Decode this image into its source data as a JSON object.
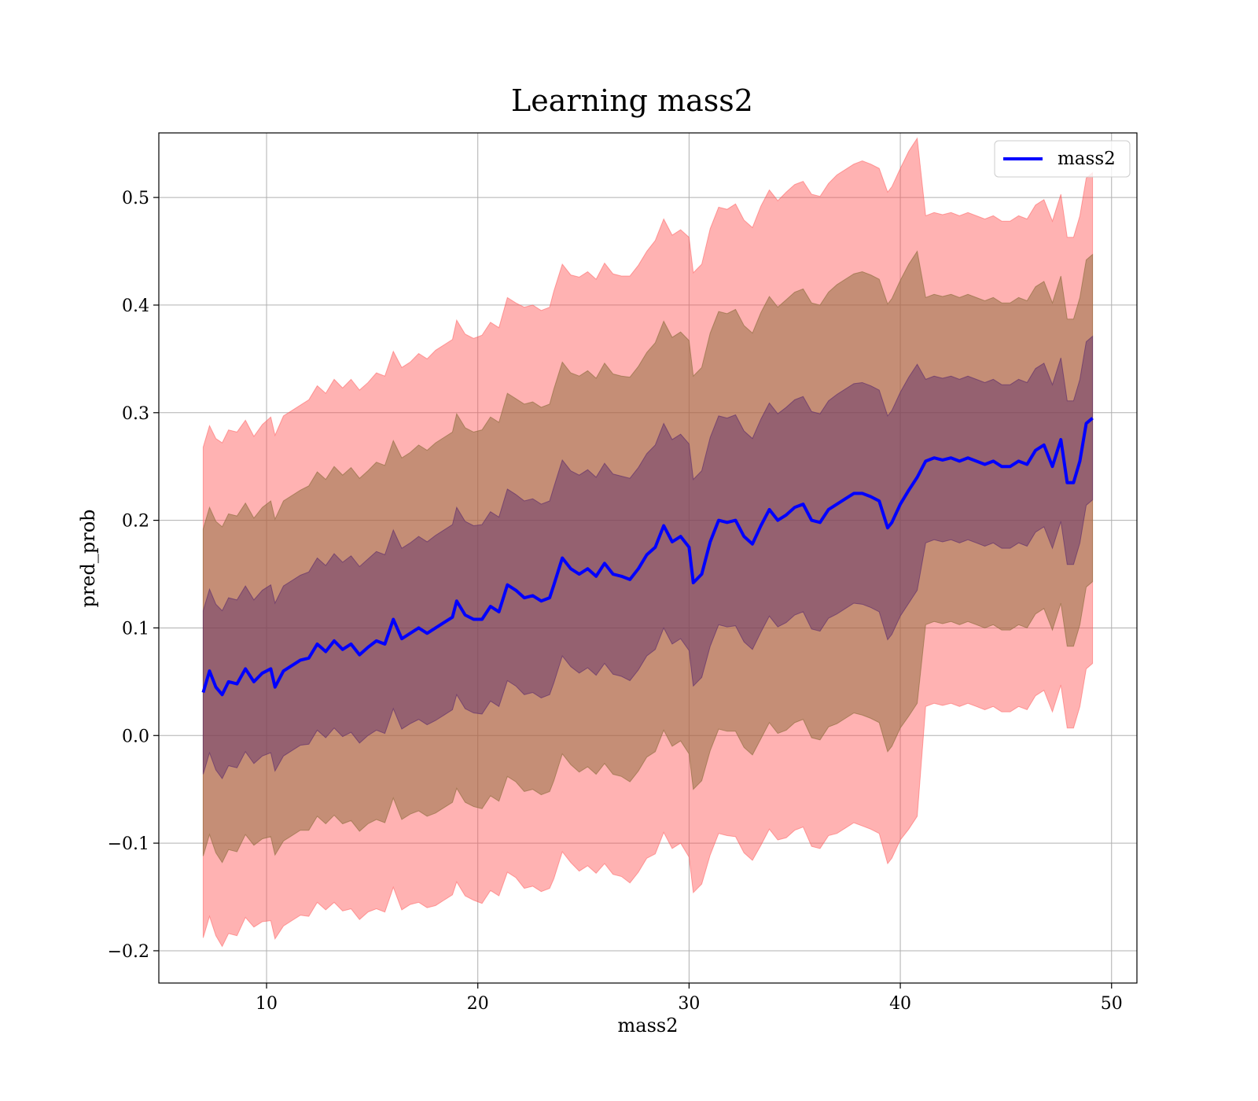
{
  "chart_data": {
    "type": "line",
    "title": "Learning mass2",
    "xlabel": "mass2",
    "ylabel": "pred_prob",
    "xlim": [
      4.9,
      51.2
    ],
    "ylim": [
      -0.23,
      0.56
    ],
    "x_ticks": [
      10,
      20,
      30,
      40,
      50
    ],
    "x_tick_labels": [
      "10",
      "20",
      "30",
      "40",
      "50"
    ],
    "y_ticks": [
      -0.2,
      -0.1,
      0.0,
      0.1,
      0.2,
      0.3,
      0.4,
      0.5
    ],
    "y_tick_labels": [
      "−0.2",
      "−0.1",
      "0.0",
      "0.1",
      "0.2",
      "0.3",
      "0.4",
      "0.5"
    ],
    "grid": true,
    "legend_position": "top-right",
    "colors": {
      "line": "#0000ff",
      "band_3sd": "#ff5555",
      "band_2sd": "#8b6a3a",
      "band_1sd": "#5a2a6a",
      "grid": "#b0b0b0"
    },
    "series": [
      {
        "name": "mass2",
        "x": [
          7.0,
          7.3,
          7.6,
          7.9,
          8.2,
          8.6,
          9.0,
          9.4,
          9.8,
          10.2,
          10.4,
          10.8,
          11.2,
          11.6,
          12.0,
          12.4,
          12.8,
          13.2,
          13.6,
          14.0,
          14.4,
          14.8,
          15.2,
          15.6,
          16.0,
          16.4,
          16.8,
          17.2,
          17.6,
          18.0,
          18.4,
          18.8,
          19.0,
          19.4,
          19.8,
          20.2,
          20.6,
          21.0,
          21.4,
          21.8,
          22.2,
          22.6,
          23.0,
          23.4,
          23.6,
          24.0,
          24.4,
          24.8,
          25.2,
          25.6,
          26.0,
          26.4,
          26.8,
          27.2,
          27.6,
          28.0,
          28.4,
          28.8,
          29.2,
          29.6,
          30.0,
          30.2,
          30.6,
          31.0,
          31.4,
          31.8,
          32.2,
          32.6,
          33.0,
          33.4,
          33.8,
          34.2,
          34.6,
          35.0,
          35.4,
          35.8,
          36.2,
          36.6,
          37.0,
          37.4,
          37.8,
          38.2,
          38.6,
          39.0,
          39.4,
          39.6,
          40.0,
          40.4,
          40.8,
          41.2,
          41.6,
          42.0,
          42.4,
          42.8,
          43.2,
          43.6,
          44.0,
          44.4,
          44.8,
          45.2,
          45.6,
          46.0,
          46.4,
          46.8,
          47.2,
          47.6,
          47.9,
          48.2,
          48.5,
          48.8,
          49.1
        ],
        "mean": [
          0.04,
          0.06,
          0.045,
          0.038,
          0.05,
          0.048,
          0.062,
          0.05,
          0.058,
          0.062,
          0.045,
          0.06,
          0.065,
          0.07,
          0.072,
          0.085,
          0.078,
          0.088,
          0.08,
          0.085,
          0.075,
          0.082,
          0.088,
          0.085,
          0.108,
          0.09,
          0.095,
          0.1,
          0.095,
          0.1,
          0.105,
          0.11,
          0.125,
          0.112,
          0.108,
          0.108,
          0.12,
          0.115,
          0.14,
          0.135,
          0.128,
          0.13,
          0.125,
          0.128,
          0.14,
          0.165,
          0.155,
          0.15,
          0.155,
          0.148,
          0.16,
          0.15,
          0.148,
          0.145,
          0.155,
          0.168,
          0.175,
          0.195,
          0.18,
          0.185,
          0.175,
          0.142,
          0.15,
          0.18,
          0.2,
          0.198,
          0.2,
          0.185,
          0.178,
          0.195,
          0.21,
          0.2,
          0.205,
          0.212,
          0.215,
          0.2,
          0.198,
          0.21,
          0.215,
          0.22,
          0.225,
          0.225,
          0.222,
          0.218,
          0.193,
          0.198,
          0.215,
          0.228,
          0.24,
          0.255,
          0.258,
          0.256,
          0.258,
          0.255,
          0.258,
          0.255,
          0.252,
          0.255,
          0.25,
          0.25,
          0.255,
          0.252,
          0.265,
          0.27,
          0.25,
          0.275,
          0.235,
          0.235,
          0.255,
          0.29,
          0.295
        ],
        "sd": [
          0.076,
          0.076,
          0.077,
          0.078,
          0.078,
          0.078,
          0.077,
          0.076,
          0.077,
          0.078,
          0.078,
          0.079,
          0.079,
          0.079,
          0.08,
          0.08,
          0.08,
          0.081,
          0.081,
          0.082,
          0.082,
          0.082,
          0.083,
          0.083,
          0.083,
          0.084,
          0.084,
          0.085,
          0.085,
          0.086,
          0.086,
          0.086,
          0.087,
          0.087,
          0.087,
          0.088,
          0.088,
          0.088,
          0.089,
          0.089,
          0.09,
          0.09,
          0.09,
          0.09,
          0.091,
          0.091,
          0.091,
          0.092,
          0.092,
          0.092,
          0.093,
          0.093,
          0.093,
          0.094,
          0.094,
          0.094,
          0.095,
          0.095,
          0.095,
          0.095,
          0.096,
          0.096,
          0.096,
          0.097,
          0.097,
          0.097,
          0.098,
          0.098,
          0.098,
          0.099,
          0.099,
          0.099,
          0.1,
          0.1,
          0.1,
          0.101,
          0.101,
          0.101,
          0.102,
          0.102,
          0.102,
          0.103,
          0.103,
          0.103,
          0.104,
          0.104,
          0.104,
          0.105,
          0.105,
          0.076,
          0.076,
          0.076,
          0.076,
          0.076,
          0.076,
          0.076,
          0.076,
          0.076,
          0.076,
          0.076,
          0.076,
          0.076,
          0.076,
          0.076,
          0.076,
          0.076,
          0.076,
          0.076,
          0.076,
          0.076,
          0.076
        ]
      }
    ]
  }
}
